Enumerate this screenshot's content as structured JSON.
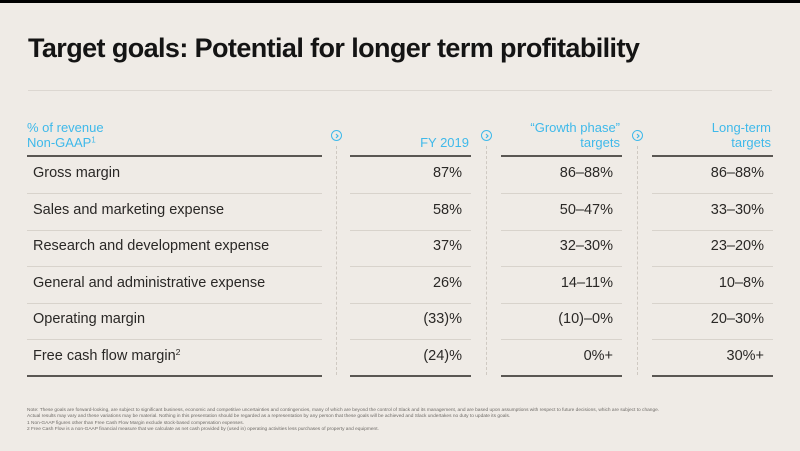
{
  "slide": {
    "title": "Target goals: Potential for longer term profitability",
    "accent_color": "#3fb9ea"
  },
  "table": {
    "header": {
      "label_line1": "% of revenue",
      "label_line2": "Non-GAAP",
      "label_sup": "1",
      "columns": [
        {
          "line1": "",
          "line2": "FY 2019"
        },
        {
          "line1": "“Growth phase”",
          "line2": "targets"
        },
        {
          "line1": "Long-term",
          "line2": "targets"
        }
      ],
      "icons": [
        "chevron-right-circle-icon",
        "chevron-right-circle-icon",
        "chevron-right-circle-icon"
      ]
    },
    "rows": [
      {
        "label": "Gross margin",
        "sup": "",
        "fy2019": "87%",
        "growth": "86–88%",
        "longterm": "86–88%"
      },
      {
        "label": "Sales and marketing expense",
        "sup": "",
        "fy2019": "58%",
        "growth": "50–47%",
        "longterm": "33–30%"
      },
      {
        "label": "Research and development expense",
        "sup": "",
        "fy2019": "37%",
        "growth": "32–30%",
        "longterm": "23–20%"
      },
      {
        "label": "General and administrative expense",
        "sup": "",
        "fy2019": "26%",
        "growth": "14–11%",
        "longterm": "10–8%"
      },
      {
        "label": "Operating margin",
        "sup": "",
        "fy2019": "(33)%",
        "growth": "(10)–0%",
        "longterm": "20–30%"
      },
      {
        "label": "Free cash flow margin",
        "sup": "2",
        "fy2019": "(24)%",
        "growth": "0%+",
        "longterm": "30%+"
      }
    ]
  },
  "notes": {
    "line1": "Note: These goals are forward-looking, are subject to significant business, economic and competitive uncertainties and contingencies, many of which are beyond the control of Slack and its management, and are based upon assumptions with respect to future decisions, which are subject to change.",
    "line2": "Actual results may vary and these variations may be material. Nothing in this presentation should be regarded as a representation by any person that these goals will be achieved and Slack undertakes no duty to update its goals.",
    "footnote1": "1    Non-GAAP figures other than Free Cash Flow Margin exclude stock-based compensation expenses.",
    "footnote2": "2    Free Cash Flow is a non-GAAP financial measure that we calculate as net cash provided by (used in) operating activities less purchases of property and equipment."
  }
}
